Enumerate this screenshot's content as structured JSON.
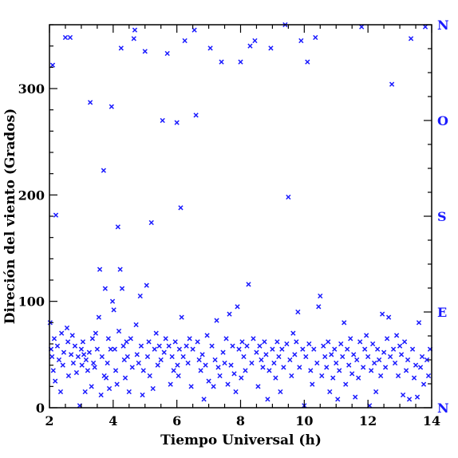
{
  "chart_data": {
    "type": "scatter",
    "xlabel": "Tiempo Universal (h)",
    "ylabel": "Direción del viento (Grados)",
    "xlim": [
      2,
      14
    ],
    "ylim": [
      0,
      360
    ],
    "x_ticks": [
      2,
      4,
      6,
      8,
      10,
      12,
      14
    ],
    "y_ticks": [
      0,
      100,
      200,
      300
    ],
    "right_axis_labels": [
      {
        "label": "N",
        "value": 0
      },
      {
        "label": "E",
        "value": 90
      },
      {
        "label": "S",
        "value": 180
      },
      {
        "label": "O",
        "value": 270
      },
      {
        "label": "N",
        "value": 360
      }
    ],
    "marker": "x",
    "marker_color": "#1a1aff",
    "grid": false,
    "series": [
      {
        "points": [
          [
            2.02,
            80
          ],
          [
            2.05,
            55
          ],
          [
            2.08,
            48
          ],
          [
            2.1,
            322
          ],
          [
            2.12,
            35
          ],
          [
            2.15,
            65
          ],
          [
            2.18,
            25
          ],
          [
            2.2,
            181
          ],
          [
            2.25,
            58
          ],
          [
            2.3,
            45
          ],
          [
            2.35,
            15
          ],
          [
            2.38,
            70
          ],
          [
            2.42,
            40
          ],
          [
            2.45,
            52
          ],
          [
            2.5,
            348
          ],
          [
            2.55,
            75
          ],
          [
            2.58,
            62
          ],
          [
            2.6,
            30
          ],
          [
            2.65,
            348
          ],
          [
            2.68,
            50
          ],
          [
            2.72,
            68
          ],
          [
            2.75,
            42
          ],
          [
            2.8,
            58
          ],
          [
            2.85,
            33
          ],
          [
            2.9,
            48
          ],
          [
            2.95,
            2
          ],
          [
            3.0,
            55
          ],
          [
            3.02,
            40
          ],
          [
            3.05,
            62
          ],
          [
            3.08,
            50
          ],
          [
            3.12,
            15
          ],
          [
            3.15,
            45
          ],
          [
            3.2,
            35
          ],
          [
            3.25,
            52
          ],
          [
            3.28,
            287
          ],
          [
            3.32,
            20
          ],
          [
            3.35,
            65
          ],
          [
            3.38,
            42
          ],
          [
            3.42,
            38
          ],
          [
            3.45,
            70
          ],
          [
            3.5,
            55
          ],
          [
            3.55,
            85
          ],
          [
            3.58,
            130
          ],
          [
            3.62,
            12
          ],
          [
            3.65,
            48
          ],
          [
            3.7,
            223
          ],
          [
            3.72,
            30
          ],
          [
            3.75,
            112
          ],
          [
            3.78,
            28
          ],
          [
            3.82,
            42
          ],
          [
            3.85,
            65
          ],
          [
            3.88,
            18
          ],
          [
            3.92,
            55
          ],
          [
            3.95,
            283
          ],
          [
            3.98,
            100
          ],
          [
            4.02,
            92
          ],
          [
            4.05,
            55
          ],
          [
            4.08,
            35
          ],
          [
            4.12,
            22
          ],
          [
            4.15,
            170
          ],
          [
            4.18,
            72
          ],
          [
            4.22,
            130
          ],
          [
            4.25,
            338
          ],
          [
            4.28,
            112
          ],
          [
            4.32,
            58
          ],
          [
            4.35,
            45
          ],
          [
            4.38,
            28
          ],
          [
            4.42,
            62
          ],
          [
            4.45,
            48
          ],
          [
            4.5,
            15
          ],
          [
            4.55,
            65
          ],
          [
            4.6,
            38
          ],
          [
            4.65,
            347
          ],
          [
            4.68,
            355
          ],
          [
            4.72,
            78
          ],
          [
            4.75,
            50
          ],
          [
            4.8,
            42
          ],
          [
            4.85,
            105
          ],
          [
            4.88,
            58
          ],
          [
            4.92,
            12
          ],
          [
            4.95,
            35
          ],
          [
            5.0,
            335
          ],
          [
            5.05,
            115
          ],
          [
            5.08,
            48
          ],
          [
            5.12,
            62
          ],
          [
            5.15,
            30
          ],
          [
            5.2,
            174
          ],
          [
            5.25,
            18
          ],
          [
            5.3,
            55
          ],
          [
            5.35,
            70
          ],
          [
            5.4,
            40
          ],
          [
            5.45,
            58
          ],
          [
            5.5,
            45
          ],
          [
            5.55,
            270
          ],
          [
            5.6,
            52
          ],
          [
            5.65,
            65
          ],
          [
            5.7,
            333
          ],
          [
            5.75,
            58
          ],
          [
            5.8,
            22
          ],
          [
            5.85,
            48
          ],
          [
            5.9,
            35
          ],
          [
            5.95,
            62
          ],
          [
            6.0,
            268
          ],
          [
            6.02,
            40
          ],
          [
            6.05,
            30
          ],
          [
            6.08,
            55
          ],
          [
            6.12,
            188
          ],
          [
            6.15,
            85
          ],
          [
            6.2,
            48
          ],
          [
            6.25,
            345
          ],
          [
            6.3,
            58
          ],
          [
            6.35,
            42
          ],
          [
            6.4,
            65
          ],
          [
            6.45,
            20
          ],
          [
            6.5,
            55
          ],
          [
            6.55,
            355
          ],
          [
            6.6,
            275
          ],
          [
            6.65,
            62
          ],
          [
            6.7,
            45
          ],
          [
            6.75,
            35
          ],
          [
            6.8,
            50
          ],
          [
            6.85,
            8
          ],
          [
            6.9,
            40
          ],
          [
            6.95,
            68
          ],
          [
            7.0,
            25
          ],
          [
            7.05,
            338
          ],
          [
            7.1,
            58
          ],
          [
            7.15,
            20
          ],
          [
            7.2,
            45
          ],
          [
            7.25,
            82
          ],
          [
            7.3,
            38
          ],
          [
            7.35,
            30
          ],
          [
            7.4,
            325
          ],
          [
            7.45,
            52
          ],
          [
            7.5,
            42
          ],
          [
            7.55,
            65
          ],
          [
            7.6,
            22
          ],
          [
            7.65,
            88
          ],
          [
            7.7,
            40
          ],
          [
            7.75,
            58
          ],
          [
            7.8,
            32
          ],
          [
            7.85,
            15
          ],
          [
            7.9,
            95
          ],
          [
            7.95,
            55
          ],
          [
            8.0,
            325
          ],
          [
            8.02,
            28
          ],
          [
            8.05,
            62
          ],
          [
            8.1,
            48
          ],
          [
            8.15,
            35
          ],
          [
            8.2,
            58
          ],
          [
            8.25,
            116
          ],
          [
            8.3,
            340
          ],
          [
            8.35,
            42
          ],
          [
            8.4,
            65
          ],
          [
            8.45,
            345
          ],
          [
            8.5,
            52
          ],
          [
            8.55,
            20
          ],
          [
            8.6,
            58
          ],
          [
            8.65,
            45
          ],
          [
            8.7,
            38
          ],
          [
            8.75,
            62
          ],
          [
            8.8,
            50
          ],
          [
            8.85,
            8
          ],
          [
            8.9,
            35
          ],
          [
            8.95,
            338
          ],
          [
            9.0,
            55
          ],
          [
            9.05,
            42
          ],
          [
            9.1,
            28
          ],
          [
            9.15,
            62
          ],
          [
            9.2,
            48
          ],
          [
            9.25,
            15
          ],
          [
            9.3,
            55
          ],
          [
            9.35,
            38
          ],
          [
            9.4,
            360
          ],
          [
            9.45,
            60
          ],
          [
            9.5,
            198
          ],
          [
            9.55,
            45
          ],
          [
            9.6,
            30
          ],
          [
            9.65,
            70
          ],
          [
            9.7,
            50
          ],
          [
            9.75,
            62
          ],
          [
            9.8,
            90
          ],
          [
            9.85,
            38
          ],
          [
            9.9,
            345
          ],
          [
            9.95,
            55
          ],
          [
            10.0,
            2
          ],
          [
            10.05,
            48
          ],
          [
            10.1,
            325
          ],
          [
            10.15,
            60
          ],
          [
            10.2,
            35
          ],
          [
            10.25,
            22
          ],
          [
            10.3,
            55
          ],
          [
            10.35,
            348
          ],
          [
            10.4,
            42
          ],
          [
            10.45,
            95
          ],
          [
            10.5,
            105
          ],
          [
            10.55,
            30
          ],
          [
            10.6,
            58
          ],
          [
            10.65,
            48
          ],
          [
            10.7,
            38
          ],
          [
            10.75,
            62
          ],
          [
            10.8,
            15
          ],
          [
            10.85,
            50
          ],
          [
            10.9,
            28
          ],
          [
            10.95,
            55
          ],
          [
            11.0,
            42
          ],
          [
            11.05,
            8
          ],
          [
            11.1,
            35
          ],
          [
            11.15,
            60
          ],
          [
            11.2,
            48
          ],
          [
            11.25,
            80
          ],
          [
            11.3,
            22
          ],
          [
            11.35,
            55
          ],
          [
            11.4,
            40
          ],
          [
            11.45,
            65
          ],
          [
            11.5,
            32
          ],
          [
            11.55,
            50
          ],
          [
            11.6,
            10
          ],
          [
            11.65,
            45
          ],
          [
            11.7,
            28
          ],
          [
            11.75,
            62
          ],
          [
            11.8,
            358
          ],
          [
            11.85,
            38
          ],
          [
            11.9,
            55
          ],
          [
            11.95,
            68
          ],
          [
            12.0,
            48
          ],
          [
            12.05,
            2
          ],
          [
            12.1,
            35
          ],
          [
            12.15,
            60
          ],
          [
            12.2,
            42
          ],
          [
            12.25,
            15
          ],
          [
            12.3,
            55
          ],
          [
            12.35,
            45
          ],
          [
            12.4,
            30
          ],
          [
            12.45,
            88
          ],
          [
            12.5,
            52
          ],
          [
            12.55,
            38
          ],
          [
            12.6,
            65
          ],
          [
            12.65,
            85
          ],
          [
            12.7,
            48
          ],
          [
            12.75,
            304
          ],
          [
            12.8,
            55
          ],
          [
            12.85,
            42
          ],
          [
            12.9,
            68
          ],
          [
            12.95,
            30
          ],
          [
            13.0,
            58
          ],
          [
            13.05,
            50
          ],
          [
            13.1,
            12
          ],
          [
            13.15,
            62
          ],
          [
            13.2,
            35
          ],
          [
            13.25,
            45
          ],
          [
            13.3,
            8
          ],
          [
            13.35,
            347
          ],
          [
            13.4,
            55
          ],
          [
            13.45,
            28
          ],
          [
            13.5,
            40
          ],
          [
            13.55,
            10
          ],
          [
            13.6,
            80
          ],
          [
            13.65,
            38
          ],
          [
            13.7,
            48
          ],
          [
            13.75,
            22
          ],
          [
            13.8,
            358
          ],
          [
            13.85,
            45
          ],
          [
            13.9,
            30
          ],
          [
            13.95,
            55
          ]
        ]
      }
    ]
  }
}
